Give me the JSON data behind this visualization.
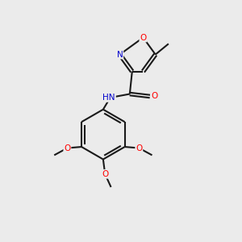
{
  "background_color": "#ebebeb",
  "bond_color": "#1a1a1a",
  "atom_colors": {
    "O": "#ff0000",
    "N": "#0000cc",
    "C": "#1a1a1a",
    "H": "#1a1a1a"
  },
  "figsize": [
    3.0,
    3.0
  ],
  "dpi": 100,
  "bond_lw": 1.5,
  "font_size": 7.5
}
